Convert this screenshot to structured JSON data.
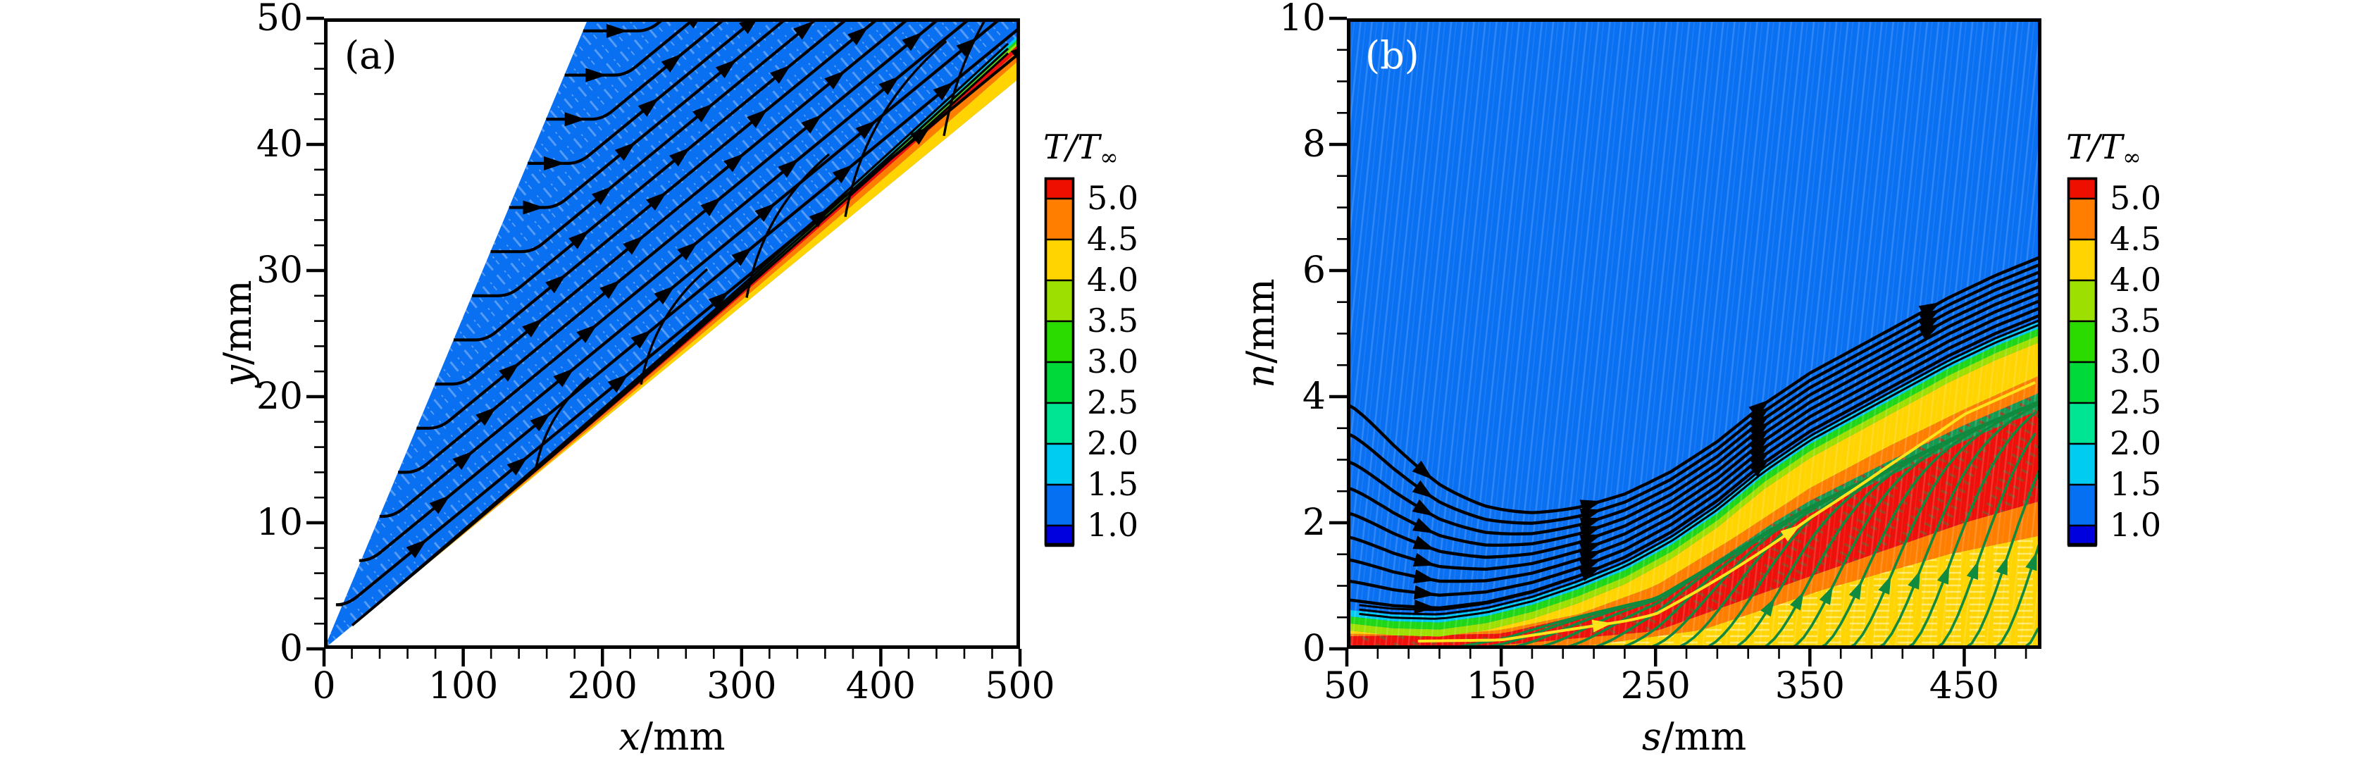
{
  "figure": {
    "background": "#ffffff",
    "panel_a": {
      "tag": "(a)",
      "x_axis": {
        "label_var": "x",
        "label_unit": "/mm",
        "tick_labels": [
          "0",
          "100",
          "200",
          "300",
          "400",
          "500"
        ]
      },
      "y_axis": {
        "label_var": "y",
        "label_unit": "/mm",
        "tick_labels": [
          "0",
          "10",
          "20",
          "30",
          "40",
          "50"
        ]
      }
    },
    "panel_b": {
      "tag": "(b)",
      "x_axis": {
        "label_var": "s",
        "label_unit": "/mm",
        "tick_labels": [
          "50",
          "150",
          "250",
          "350",
          "450"
        ]
      },
      "y_axis": {
        "label_var": "n",
        "label_unit": "/mm",
        "tick_labels": [
          "0",
          "2",
          "4",
          "6",
          "8",
          "10"
        ]
      }
    },
    "colorbar": {
      "title_main": "T/T",
      "title_sub": "∞",
      "tick_labels": [
        "5.0",
        "4.5",
        "4.0",
        "3.5",
        "3.0",
        "2.5",
        "2.0",
        "1.5",
        "1.0"
      ],
      "block_colors_top_to_bottom": [
        "#ee0f00",
        "#ff7e00",
        "#ffd400",
        "#9cdf00",
        "#2bdb00",
        "#00d93a",
        "#00e593",
        "#00ccf2",
        "#0570f2",
        "#0000df"
      ]
    }
  },
  "chart_data": [
    {
      "type": "heatmap",
      "panel": "(a)",
      "title": "Temperature contour flood with streamlines over sharp wedge (physical coordinates)",
      "xlabel": "x/mm",
      "ylabel": "y/mm",
      "xlim": [
        0,
        500
      ],
      "ylim": [
        0,
        50
      ],
      "x_major_ticks": [
        0,
        100,
        200,
        300,
        400,
        500
      ],
      "x_minor_step_mm": 20,
      "y_major_ticks": [
        0,
        10,
        20,
        30,
        40,
        50
      ],
      "y_minor_step_mm": 2,
      "quantity": "T/T_inf",
      "contour_level_labels": [
        5.0,
        4.5,
        4.0,
        3.5,
        3.0,
        2.5,
        2.0,
        1.5,
        1.0
      ],
      "level_colors_top_to_bottom": [
        "#ee0f00",
        "#ff7e00",
        "#ffd400",
        "#9cdf00",
        "#2bdb00",
        "#00d93a",
        "#00e593",
        "#00ccf2",
        "#0570f2",
        "#0000df"
      ],
      "legend_position": "right colorbar",
      "grid": false,
      "features_estimated_mm": {
        "domain_leading_edge_boundary": [
          [
            0,
            0
          ],
          [
            190,
            50
          ]
        ],
        "oblique_shock_streamline_kink_line": [
          [
            0,
            0
          ],
          [
            238,
            50
          ]
        ],
        "wedge_surface_line": [
          [
            0,
            0
          ],
          [
            500,
            45.3
          ]
        ],
        "boundary_layer_edge_at_x500": 48.6,
        "freestream_flood_level": "1.0-1.5 (blue)",
        "near_wall_band_order_from_wall": [
          "yellow 4.0-4.5",
          "orange 4.5-5.0",
          "red >5.0",
          "thin chartreuse/green/cyan 1.5-4.0",
          "blue freestream"
        ],
        "streamline_entry_heights": [
          3.5,
          7,
          10.5,
          14,
          17.5,
          21,
          24.5,
          28,
          31.5,
          35,
          38.5,
          42,
          45.5,
          49
        ],
        "streamline_style": "black, horizontal upstream, deflected parallel to surface after shock, arrowheads along paths"
      }
    },
    {
      "type": "heatmap",
      "panel": "(b)",
      "title": "Temperature contour flood with streamlines in surface-fitted coordinates",
      "xlabel": "s/mm",
      "ylabel": "n/mm",
      "xlim": [
        50,
        500
      ],
      "ylim": [
        0,
        10
      ],
      "x_major_ticks": [
        50,
        150,
        250,
        350,
        450
      ],
      "x_minor_step_mm": 20,
      "y_major_ticks": [
        0,
        2,
        4,
        6,
        8,
        10
      ],
      "y_minor_step_mm": 0.5,
      "quantity": "T/T_inf",
      "contour_level_labels": [
        5.0,
        4.5,
        4.0,
        3.5,
        3.0,
        2.5,
        2.0,
        1.5,
        1.0
      ],
      "level_colors_top_to_bottom": [
        "#ee0f00",
        "#ff7e00",
        "#ffd400",
        "#9cdf00",
        "#2bdb00",
        "#00d93a",
        "#00e593",
        "#00ccf2",
        "#0570f2",
        "#0000df"
      ],
      "legend_position": "right colorbar",
      "grid": false,
      "features_estimated_mm": {
        "thermal_layer_edge_blue_boundary": [
          [
            50,
            0.62
          ],
          [
            80,
            0.54
          ],
          [
            110,
            0.52
          ],
          [
            140,
            0.62
          ],
          [
            170,
            0.8
          ],
          [
            200,
            1.05
          ],
          [
            230,
            1.35
          ],
          [
            260,
            1.75
          ],
          [
            290,
            2.25
          ],
          [
            320,
            2.85
          ],
          [
            350,
            3.35
          ],
          [
            380,
            3.75
          ],
          [
            410,
            4.15
          ],
          [
            440,
            4.55
          ],
          [
            470,
            4.9
          ],
          [
            500,
            5.2
          ]
        ],
        "red_zone_top": [
          [
            50,
            0.2
          ],
          [
            150,
            0.24
          ],
          [
            250,
            0.8
          ],
          [
            350,
            2.15
          ],
          [
            450,
            3.3
          ],
          [
            500,
            3.8
          ]
        ],
        "red_zone_bottom": [
          [
            50,
            0.03
          ],
          [
            150,
            0.06
          ],
          [
            250,
            0.28
          ],
          [
            350,
            1.15
          ],
          [
            450,
            2.0
          ],
          [
            500,
            2.35
          ]
        ],
        "yellow_wall_region_top": [
          [
            50,
            0.0
          ],
          [
            200,
            0.03
          ],
          [
            280,
            0.3
          ],
          [
            360,
            0.95
          ],
          [
            440,
            1.5
          ],
          [
            500,
            1.8
          ]
        ],
        "black_streamline_entry_heights": [
          0.78,
          1.08,
          1.42,
          1.78,
          2.16,
          2.56,
          2.98,
          3.42,
          3.88
        ],
        "green_streamline_wall_seeds_s": "≈110 to 490, about every 19 mm, dark-green, bending downstream into layer",
        "yellow_dividing_streamline_start_s": 96,
        "arrowhead_cluster_s_locations": [
          100,
          208,
          318,
          428
        ]
      }
    }
  ]
}
